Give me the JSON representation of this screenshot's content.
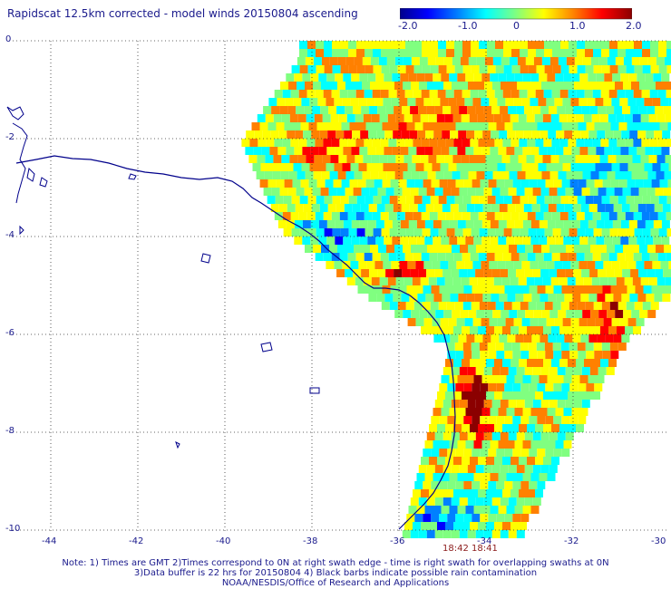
{
  "title": "Rapidscat 12.5km corrected - model winds 20150804 ascending",
  "colorbar": {
    "ticks": [
      "-2.0",
      "-1.0",
      "0",
      "1.0",
      "2.0"
    ],
    "min": -2.0,
    "max": 2.0,
    "colors": [
      "#00008b",
      "#0000ff",
      "#0080ff",
      "#00ffff",
      "#80ff80",
      "#ffff00",
      "#ff8000",
      "#ff0000",
      "#8b0000"
    ]
  },
  "latitude_labels": [
    "0",
    "-2",
    "-4",
    "-6",
    "-8",
    "-10"
  ],
  "longitude_labels": [
    "-44",
    "-42",
    "-40",
    "-38",
    "-36",
    "-34",
    "-32",
    "-30"
  ],
  "swath_times": [
    "18:42",
    "18:41"
  ],
  "notes": [
    "Note: 1) Times are GMT 2)Times correspond to 0N at right swath edge - time is right swath for overlapping swaths at 0N",
    "3)Data buffer is 22 hrs for 20150804 4) Black barbs indicate possible rain contamination",
    "NOAA/NESDIS/Office of Research and Applications"
  ]
}
